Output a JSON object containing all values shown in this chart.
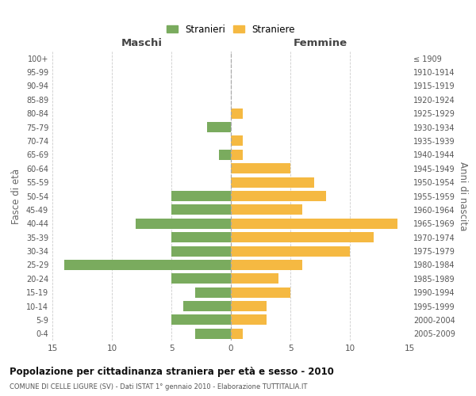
{
  "age_groups": [
    "100+",
    "95-99",
    "90-94",
    "85-89",
    "80-84",
    "75-79",
    "70-74",
    "65-69",
    "60-64",
    "55-59",
    "50-54",
    "45-49",
    "40-44",
    "35-39",
    "30-34",
    "25-29",
    "20-24",
    "15-19",
    "10-14",
    "5-9",
    "0-4"
  ],
  "birth_years": [
    "≤ 1909",
    "1910-1914",
    "1915-1919",
    "1920-1924",
    "1925-1929",
    "1930-1934",
    "1935-1939",
    "1940-1944",
    "1945-1949",
    "1950-1954",
    "1955-1959",
    "1960-1964",
    "1965-1969",
    "1970-1974",
    "1975-1979",
    "1980-1984",
    "1985-1989",
    "1990-1994",
    "1995-1999",
    "2000-2004",
    "2005-2009"
  ],
  "males": [
    0,
    0,
    0,
    0,
    0,
    2,
    0,
    1,
    0,
    0,
    5,
    5,
    8,
    5,
    5,
    14,
    5,
    3,
    4,
    5,
    3
  ],
  "females": [
    0,
    0,
    0,
    0,
    1,
    0,
    1,
    1,
    5,
    7,
    8,
    6,
    14,
    12,
    10,
    6,
    4,
    5,
    3,
    3,
    1
  ],
  "male_color": "#7aab5e",
  "female_color": "#f5b942",
  "title": "Popolazione per cittadinanza straniera per età e sesso - 2010",
  "subtitle": "COMUNE DI CELLE LIGURE (SV) - Dati ISTAT 1° gennaio 2010 - Elaborazione TUTTITALIA.IT",
  "left_label": "Maschi",
  "right_label": "Femmine",
  "ylabel_left": "Fasce di età",
  "ylabel_right": "Anni di nascita",
  "legend_male": "Stranieri",
  "legend_female": "Straniere",
  "xlim": 15,
  "background_color": "#ffffff",
  "grid_color": "#cccccc"
}
